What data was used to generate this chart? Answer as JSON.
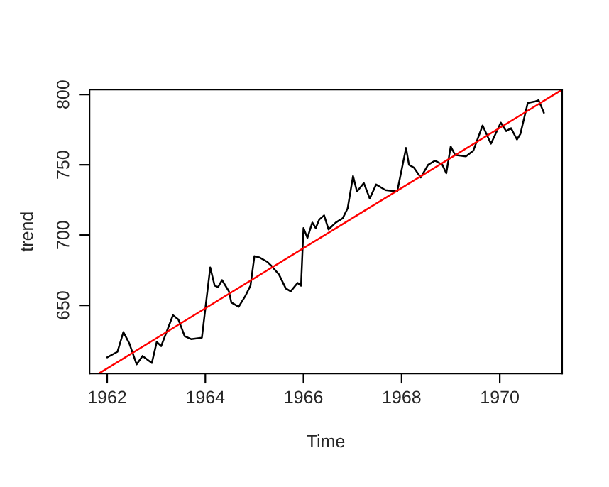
{
  "chart_data": {
    "type": "line",
    "xlabel": "Time",
    "ylabel": "trend",
    "xlim": [
      1961.64,
      1971.27
    ],
    "ylim": [
      601.5,
      803.5
    ],
    "xticks": [
      1962,
      1964,
      1966,
      1968,
      1970
    ],
    "yticks": [
      650,
      700,
      750,
      800
    ],
    "grid": false,
    "legend": false,
    "marker": "none",
    "line_style": "solid",
    "series": [
      {
        "color": "#000000",
        "x": [
          1962.0,
          1962.21,
          1962.33,
          1962.45,
          1962.6,
          1962.72,
          1962.91,
          1963.01,
          1963.1,
          1963.34,
          1963.45,
          1963.58,
          1963.71,
          1963.93,
          1964.1,
          1964.19,
          1964.26,
          1964.34,
          1964.48,
          1964.53,
          1964.68,
          1964.82,
          1964.92,
          1965.0,
          1965.11,
          1965.26,
          1965.35,
          1965.5,
          1965.64,
          1965.74,
          1965.88,
          1965.95,
          1966.0,
          1966.08,
          1966.18,
          1966.25,
          1966.32,
          1966.42,
          1966.51,
          1966.66,
          1966.8,
          1966.9,
          1967.01,
          1967.09,
          1967.23,
          1967.35,
          1967.48,
          1967.67,
          1967.91,
          1968.09,
          1968.15,
          1968.25,
          1968.39,
          1968.54,
          1968.68,
          1968.83,
          1968.91,
          1969.0,
          1969.09,
          1969.31,
          1969.46,
          1969.65,
          1969.82,
          1970.02,
          1970.13,
          1970.23,
          1970.35,
          1970.42,
          1970.57,
          1970.71,
          1970.79,
          1970.9
        ],
        "values": [
          613,
          617,
          631,
          623,
          608,
          614,
          609,
          624,
          621,
          643,
          640,
          628,
          626,
          627,
          677,
          664,
          663,
          668,
          660,
          652,
          649,
          657,
          664,
          685,
          684,
          681,
          678,
          672,
          662,
          660,
          666,
          664,
          705,
          698,
          709,
          705,
          711,
          714,
          704,
          709,
          712,
          719,
          742,
          731,
          737,
          726,
          736,
          732,
          731,
          762,
          750,
          748,
          741,
          750,
          753,
          750,
          744,
          763,
          757,
          756,
          760,
          778,
          765,
          780,
          774,
          776,
          768,
          772,
          794,
          795,
          796,
          787
        ]
      },
      {
        "color": "#ff0000",
        "x": [
          1961.83,
          1971.27
        ],
        "values": [
          601.5,
          803.5
        ]
      }
    ]
  }
}
